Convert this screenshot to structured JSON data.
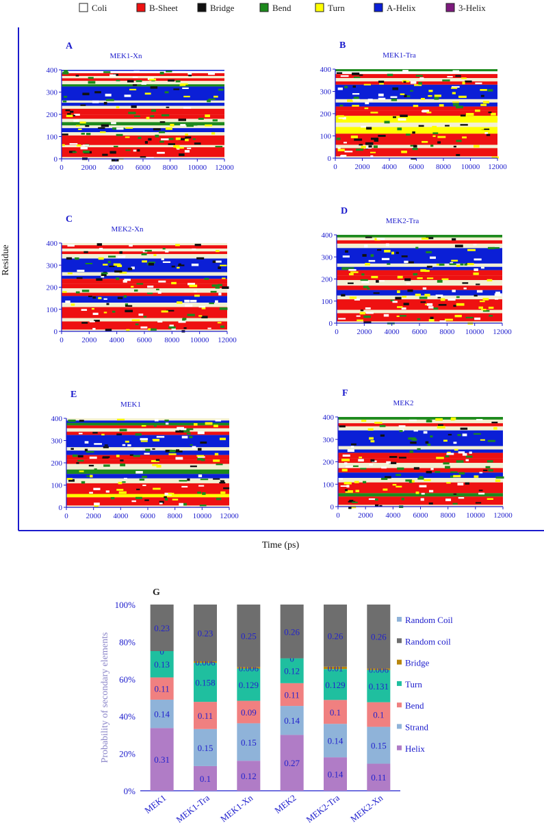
{
  "dssp_legend": [
    {
      "label": "Coli",
      "color": "#ffffff"
    },
    {
      "label": "B-Sheet",
      "color": "#ee1111"
    },
    {
      "label": "Bridge",
      "color": "#111111"
    },
    {
      "label": "Bend",
      "color": "#1d8a1d"
    },
    {
      "label": "Turn",
      "color": "#ffff00"
    },
    {
      "label": "A-Helix",
      "color": "#0b1fd6"
    },
    {
      "label": "3-Helix",
      "color": "#7d1a7d"
    }
  ],
  "ylabel": "Residue",
  "xlabel": "Time (ps)",
  "chart_data": [
    {
      "type": "heatmap",
      "letter": "A",
      "title": "MEK1-Xn",
      "xlim": [
        0,
        12000
      ],
      "ylim": [
        0,
        400
      ],
      "xticks": [
        0,
        2000,
        4000,
        6000,
        8000,
        10000,
        12000
      ],
      "yticks": [
        0,
        100,
        200,
        300,
        400
      ],
      "bands": [
        [
          395,
          400,
          "#0b1fd6"
        ],
        [
          385,
          395,
          "#ffffff"
        ],
        [
          372,
          385,
          "#ee1111"
        ],
        [
          362,
          372,
          "#f3f0d3"
        ],
        [
          350,
          362,
          "#ee1111"
        ],
        [
          335,
          350,
          "#f3f0d3"
        ],
        [
          325,
          335,
          "#1d8a1d"
        ],
        [
          262,
          325,
          "#0b1fd6"
        ],
        [
          252,
          262,
          "#f3f0d3"
        ],
        [
          238,
          252,
          "#0b1fd6"
        ],
        [
          225,
          238,
          "#f3f0d3"
        ],
        [
          198,
          225,
          "#ee1111"
        ],
        [
          180,
          198,
          "#ee1111"
        ],
        [
          165,
          180,
          "#f3f0d3"
        ],
        [
          150,
          165,
          "#1d8a1d"
        ],
        [
          138,
          150,
          "#f3f0d3"
        ],
        [
          120,
          138,
          "#0b1fd6"
        ],
        [
          105,
          120,
          "#f3f0d3"
        ],
        [
          62,
          105,
          "#ee1111"
        ],
        [
          52,
          62,
          "#f3f0d3"
        ],
        [
          8,
          52,
          "#ee1111"
        ],
        [
          0,
          8,
          "#f3f0d3"
        ]
      ],
      "speckle": [
        "#1d8a1d",
        "#111111",
        "#ffff00",
        "#ffffff"
      ]
    },
    {
      "type": "heatmap",
      "letter": "B",
      "title": "MEK1-Tra",
      "xlim": [
        0,
        12000
      ],
      "ylim": [
        0,
        400
      ],
      "xticks": [
        0,
        2000,
        4000,
        6000,
        8000,
        10000,
        12000
      ],
      "yticks": [
        0,
        100,
        200,
        300,
        400
      ],
      "bands": [
        [
          390,
          400,
          "#1d8a1d"
        ],
        [
          378,
          390,
          "#ffffff"
        ],
        [
          360,
          378,
          "#ee1111"
        ],
        [
          345,
          360,
          "#f3f0d3"
        ],
        [
          330,
          345,
          "#ee1111"
        ],
        [
          265,
          330,
          "#0b1fd6"
        ],
        [
          250,
          265,
          "#f3f0d3"
        ],
        [
          232,
          250,
          "#0b1fd6"
        ],
        [
          215,
          232,
          "#ee1111"
        ],
        [
          190,
          215,
          "#ee1111"
        ],
        [
          160,
          190,
          "#ffff00"
        ],
        [
          140,
          160,
          "#f3f0d3"
        ],
        [
          110,
          140,
          "#ffff00"
        ],
        [
          60,
          110,
          "#ee1111"
        ],
        [
          45,
          60,
          "#f3f0d3"
        ],
        [
          8,
          45,
          "#ee1111"
        ],
        [
          0,
          8,
          "#f3f0d3"
        ]
      ],
      "speckle": [
        "#ffff00",
        "#111111",
        "#1d8a1d",
        "#ffffff"
      ]
    },
    {
      "type": "heatmap",
      "letter": "C",
      "title": "MEK2-Xn",
      "xlim": [
        0,
        12000
      ],
      "ylim": [
        0,
        400
      ],
      "xticks": [
        0,
        2000,
        4000,
        6000,
        8000,
        10000,
        12000
      ],
      "yticks": [
        0,
        100,
        200,
        300,
        400
      ],
      "bands": [
        [
          375,
          390,
          "#ee1111"
        ],
        [
          362,
          375,
          "#f3f0d3"
        ],
        [
          350,
          362,
          "#ee1111"
        ],
        [
          330,
          350,
          "#f3f0d3"
        ],
        [
          268,
          330,
          "#0b1fd6"
        ],
        [
          252,
          268,
          "#f3f0d3"
        ],
        [
          238,
          252,
          "#0b1fd6"
        ],
        [
          215,
          238,
          "#ee1111"
        ],
        [
          195,
          215,
          "#ee1111"
        ],
        [
          175,
          195,
          "#f3f0d3"
        ],
        [
          160,
          175,
          "#ee1111"
        ],
        [
          130,
          160,
          "#0b1fd6"
        ],
        [
          110,
          130,
          "#f3f0d3"
        ],
        [
          60,
          110,
          "#ee1111"
        ],
        [
          45,
          60,
          "#f3f0d3"
        ],
        [
          8,
          45,
          "#ee1111"
        ],
        [
          0,
          8,
          "#f3f0d3"
        ]
      ],
      "speckle": [
        "#1d8a1d",
        "#111111",
        "#ffff00",
        "#ffffff"
      ]
    },
    {
      "type": "heatmap",
      "letter": "D",
      "title": "MEK2-Tra",
      "xlim": [
        0,
        12000
      ],
      "ylim": [
        0,
        400
      ],
      "xticks": [
        0,
        2000,
        4000,
        6000,
        8000,
        10000,
        12000
      ],
      "yticks": [
        0,
        100,
        200,
        300,
        400
      ],
      "bands": [
        [
          388,
          400,
          "#1d8a1d"
        ],
        [
          375,
          388,
          "#f3f0d3"
        ],
        [
          360,
          375,
          "#ee1111"
        ],
        [
          340,
          360,
          "#f3f0d3"
        ],
        [
          270,
          340,
          "#0b1fd6"
        ],
        [
          255,
          270,
          "#f3f0d3"
        ],
        [
          240,
          255,
          "#0b1fd6"
        ],
        [
          215,
          240,
          "#ee1111"
        ],
        [
          195,
          215,
          "#ee1111"
        ],
        [
          170,
          195,
          "#f3f0d3"
        ],
        [
          150,
          170,
          "#ee1111"
        ],
        [
          125,
          150,
          "#0b1fd6"
        ],
        [
          108,
          125,
          "#f3f0d3"
        ],
        [
          60,
          108,
          "#ee1111"
        ],
        [
          45,
          60,
          "#f3f0d3"
        ],
        [
          8,
          45,
          "#ee1111"
        ],
        [
          0,
          8,
          "#f3f0d3"
        ]
      ],
      "speckle": [
        "#1d8a1d",
        "#111111",
        "#ffff00",
        "#ffffff"
      ]
    },
    {
      "type": "heatmap",
      "letter": "E",
      "title": "MEK1",
      "xlim": [
        0,
        12000
      ],
      "ylim": [
        0,
        400
      ],
      "xticks": [
        0,
        2000,
        4000,
        6000,
        8000,
        10000,
        12000
      ],
      "yticks": [
        0,
        100,
        200,
        300,
        400
      ],
      "bands": [
        [
          380,
          390,
          "#0b1fd6"
        ],
        [
          368,
          380,
          "#1d8a1d"
        ],
        [
          355,
          368,
          "#ee1111"
        ],
        [
          340,
          355,
          "#f3f0d3"
        ],
        [
          325,
          340,
          "#ee1111"
        ],
        [
          270,
          325,
          "#0b1fd6"
        ],
        [
          255,
          270,
          "#f3f0d3"
        ],
        [
          235,
          255,
          "#0b1fd6"
        ],
        [
          215,
          235,
          "#ee1111"
        ],
        [
          195,
          215,
          "#ee1111"
        ],
        [
          170,
          195,
          "#f3f0d3"
        ],
        [
          150,
          170,
          "#1d8a1d"
        ],
        [
          130,
          150,
          "#0b1fd6"
        ],
        [
          108,
          130,
          "#f3f0d3"
        ],
        [
          60,
          108,
          "#ee1111"
        ],
        [
          45,
          60,
          "#ffff00"
        ],
        [
          8,
          45,
          "#ee1111"
        ],
        [
          0,
          8,
          "#f3f0d3"
        ]
      ],
      "speckle": [
        "#1d8a1d",
        "#111111",
        "#ffff00",
        "#ffffff"
      ]
    },
    {
      "type": "heatmap",
      "letter": "F",
      "title": "MEK2",
      "xlim": [
        0,
        12000
      ],
      "ylim": [
        0,
        400
      ],
      "xticks": [
        0,
        2000,
        4000,
        6000,
        8000,
        10000,
        12000
      ],
      "yticks": [
        0,
        100,
        200,
        300,
        400
      ],
      "bands": [
        [
          388,
          400,
          "#1d8a1d"
        ],
        [
          372,
          388,
          "#f3f0d3"
        ],
        [
          358,
          372,
          "#ee1111"
        ],
        [
          340,
          358,
          "#f3f0d3"
        ],
        [
          270,
          340,
          "#0b1fd6"
        ],
        [
          255,
          270,
          "#f3f0d3"
        ],
        [
          240,
          255,
          "#0b1fd6"
        ],
        [
          215,
          240,
          "#ee1111"
        ],
        [
          195,
          215,
          "#ee1111"
        ],
        [
          172,
          195,
          "#f3f0d3"
        ],
        [
          152,
          172,
          "#ee1111"
        ],
        [
          128,
          152,
          "#0b1fd6"
        ],
        [
          108,
          128,
          "#f3f0d3"
        ],
        [
          60,
          108,
          "#ee1111"
        ],
        [
          45,
          60,
          "#1d8a1d"
        ],
        [
          8,
          45,
          "#ee1111"
        ],
        [
          0,
          8,
          "#f3f0d3"
        ]
      ],
      "speckle": [
        "#1d8a1d",
        "#111111",
        "#ffff00",
        "#ffffff"
      ]
    },
    {
      "type": "bar",
      "stacked": true,
      "normalized": true,
      "letter": "G",
      "categories": [
        "MEK1",
        "MEK1-Tra",
        "MEK1-Xn",
        "MEK2",
        "MEK2-Tra",
        "MEK2-Xn"
      ],
      "ylabel": "Probability of secondary elements",
      "ylim": [
        0,
        100
      ],
      "yticks": [
        "0%",
        "20%",
        "40%",
        "60%",
        "80%",
        "100%"
      ],
      "series": [
        {
          "name": "Helix",
          "color": "#b07cc6",
          "values": [
            0.31,
            0.1,
            0.12,
            0.27,
            0.14,
            0.11
          ]
        },
        {
          "name": "Strand",
          "color": "#8fb3d9",
          "values": [
            0.14,
            0.15,
            0.15,
            0.14,
            0.14,
            0.15
          ]
        },
        {
          "name": "Bend",
          "color": "#f08080",
          "values": [
            0.11,
            0.11,
            0.09,
            0.11,
            0.1,
            0.1
          ]
        },
        {
          "name": "Turn",
          "color": "#1fbf9f",
          "values": [
            0.13,
            0.158,
            0.129,
            0.12,
            0.129,
            0.131
          ]
        },
        {
          "name": "Bridge",
          "color": "#b8860b",
          "values": [
            0,
            0.006,
            0.006,
            0,
            0.01,
            0.006
          ]
        },
        {
          "name": "Random coil",
          "color": "#6e6e6e",
          "values": [
            0.23,
            0.23,
            0.25,
            0.26,
            0.26,
            0.26
          ]
        }
      ],
      "legend": [
        "Random Coil",
        "Random coil",
        "Bridge",
        "Turn",
        "Bend",
        "Strand",
        "Helix"
      ],
      "legend_colors": [
        "#8fb3d9",
        "#6e6e6e",
        "#b8860b",
        "#1fbf9f",
        "#f08080",
        "#8fb3d9",
        "#b07cc6"
      ],
      "legend_position": "right"
    }
  ]
}
